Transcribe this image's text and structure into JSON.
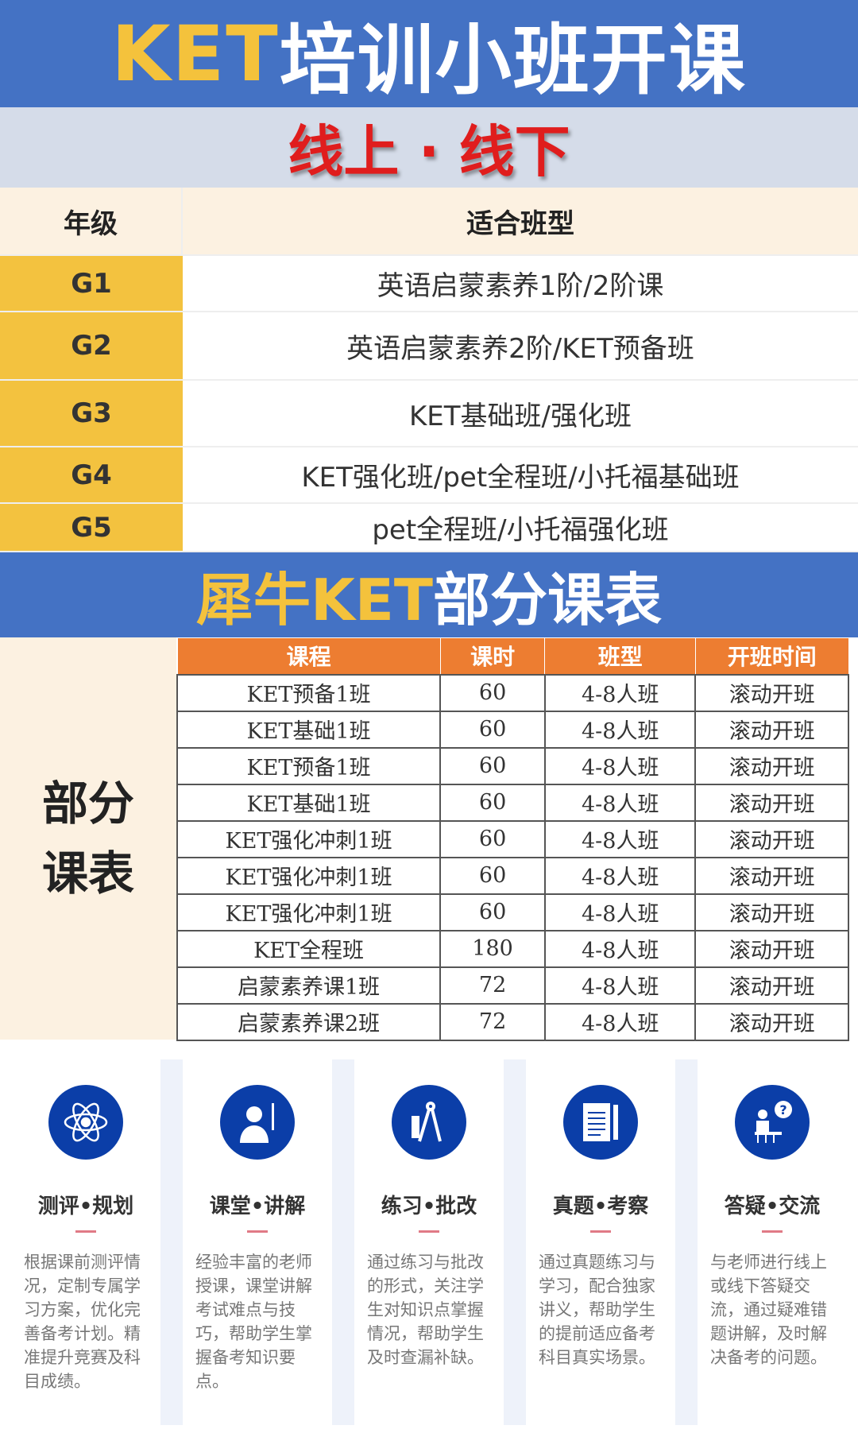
{
  "header": {
    "title_accent": "KET",
    "title_rest": "培训小班开课",
    "subtitle": "线上 · 线下"
  },
  "grade_table": {
    "headers": [
      "年级",
      "适合班型"
    ],
    "rows": [
      {
        "grade": "G1",
        "classes": "英语启蒙素养1阶/2阶课"
      },
      {
        "grade": "G2",
        "classes": "英语启蒙素养2阶/KET预备班"
      },
      {
        "grade": "G3",
        "classes": "KET基础班/强化班"
      },
      {
        "grade": "G4",
        "classes": "KET强化班/pet全程班/小托福基础班"
      },
      {
        "grade": "G5",
        "classes": "pet全程班/小托福强化班"
      }
    ]
  },
  "schedule": {
    "title_accent": "犀牛KET",
    "title_rest": "部分课表",
    "side_label_1": "部分",
    "side_label_2": "课表",
    "headers": [
      "课程",
      "课时",
      "班型",
      "开班时间"
    ],
    "rows": [
      [
        "KET预备1班",
        "60",
        "4-8人班",
        "滚动开班"
      ],
      [
        "KET基础1班",
        "60",
        "4-8人班",
        "滚动开班"
      ],
      [
        "KET预备1班",
        "60",
        "4-8人班",
        "滚动开班"
      ],
      [
        "KET基础1班",
        "60",
        "4-8人班",
        "滚动开班"
      ],
      [
        "KET强化冲刺1班",
        "60",
        "4-8人班",
        "滚动开班"
      ],
      [
        "KET强化冲刺1班",
        "60",
        "4-8人班",
        "滚动开班"
      ],
      [
        "KET强化冲刺1班",
        "60",
        "4-8人班",
        "滚动开班"
      ],
      [
        "KET全程班",
        "180",
        "4-8人班",
        "滚动开班"
      ],
      [
        "启蒙素养课1班",
        "72",
        "4-8人班",
        "滚动开班"
      ],
      [
        "启蒙素养课2班",
        "72",
        "4-8人班",
        "滚动开班"
      ]
    ]
  },
  "features": [
    {
      "icon": "atom-icon",
      "title": "测评•规划",
      "desc": "根据课前测评情况，定制专属学习方案，优化完善备考计划。精准提升竞赛及科目成绩。"
    },
    {
      "icon": "teacher-icon",
      "title": "课堂•讲解",
      "desc": "经验丰富的老师授课，课堂讲解考试难点与技巧，帮助学生掌握备考知识要点。"
    },
    {
      "icon": "compass-icon",
      "title": "练习•批改",
      "desc": "通过练习与批改的形式，关注学生对知识点掌握情况，帮助学生及时查漏补缺。"
    },
    {
      "icon": "document-icon",
      "title": "真题•考察",
      "desc": "通过真题练习与学习，配合独家讲义，帮助学生的提前适应备考科目真实场景。"
    },
    {
      "icon": "question-icon",
      "title": "答疑•交流",
      "desc": "与老师进行线上或线下答疑交流，通过疑难错题讲解，及时解决备考的问题。"
    }
  ],
  "colors": {
    "blue": "#4472c4",
    "yellow": "#f3c23f",
    "red": "#e01d1d",
    "orange": "#ed7d31",
    "icon_blue": "#0b3ea8"
  }
}
